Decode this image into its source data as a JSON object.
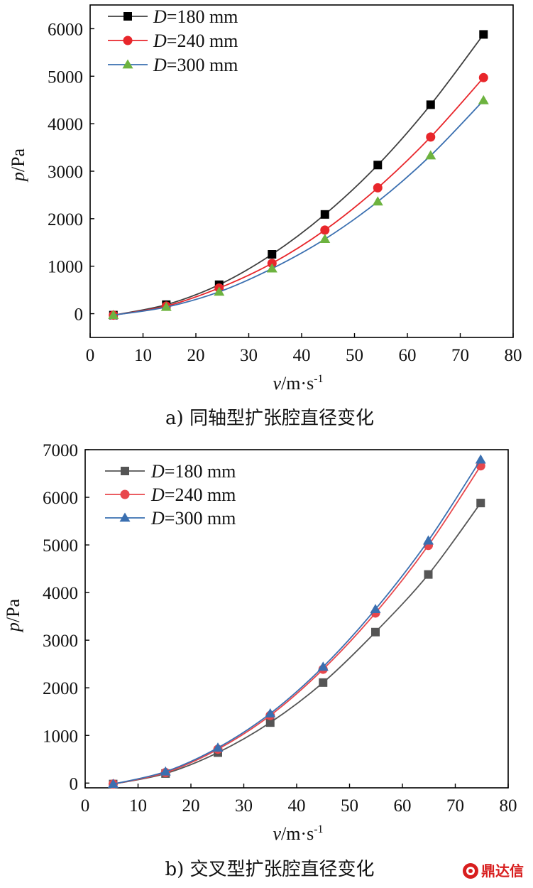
{
  "chart_data": [
    {
      "type": "line",
      "caption": "a) 同轴型扩张腔直径变化",
      "ylabel_var": "p",
      "ylabel_unit": "/Pa",
      "xlabel_var": "v",
      "xlabel_unit": "/m·s",
      "xlabel_sup": "-1",
      "xlim": [
        0,
        80
      ],
      "ylim": [
        -500,
        6500
      ],
      "xticks": [
        0,
        10,
        20,
        30,
        40,
        50,
        60,
        70,
        80
      ],
      "yticks": [
        0,
        1000,
        2000,
        3000,
        4000,
        5000,
        6000
      ],
      "x": [
        4.4,
        14.4,
        24.4,
        34.4,
        44.4,
        54.4,
        64.4,
        74.4
      ],
      "legend_position": "top-left",
      "series": [
        {
          "name_var": "D",
          "name_rest": "=180 mm",
          "marker": "square",
          "color": "#000000",
          "line_color": "#404040",
          "values": [
            -30,
            190,
            610,
            1250,
            2090,
            3130,
            4400,
            5880
          ]
        },
        {
          "name_var": "D",
          "name_rest": "=240 mm",
          "marker": "circle",
          "color": "#e8262b",
          "line_color": "#e8262b",
          "values": [
            -30,
            160,
            540,
            1060,
            1760,
            2650,
            3720,
            4970
          ]
        },
        {
          "name_var": "D",
          "name_rest": "=300 mm",
          "marker": "triangle",
          "color": "#6db33f",
          "line_color": "#3a6fb0",
          "values": [
            -30,
            140,
            460,
            950,
            1570,
            2360,
            3330,
            4490
          ]
        }
      ]
    },
    {
      "type": "line",
      "caption": "b) 交叉型扩张腔直径变化",
      "ylabel_var": "p",
      "ylabel_unit": "/Pa",
      "xlabel_var": "v",
      "xlabel_unit": "/m·s",
      "xlabel_sup": "-1",
      "xlim": [
        0,
        80
      ],
      "ylim": [
        -100,
        7000
      ],
      "xticks": [
        0,
        10,
        20,
        30,
        40,
        50,
        60,
        70,
        80
      ],
      "yticks": [
        0,
        1000,
        2000,
        3000,
        4000,
        5000,
        6000,
        7000
      ],
      "x": [
        5.3,
        15.2,
        25.1,
        35.0,
        45.0,
        54.9,
        64.9,
        74.8
      ],
      "legend_position": "top-left",
      "series": [
        {
          "name_var": "D",
          "name_rest": "=180 mm",
          "marker": "square",
          "color": "#555555",
          "line_color": "#555555",
          "values": [
            -20,
            200,
            640,
            1270,
            2110,
            3170,
            4380,
            5880
          ]
        },
        {
          "name_var": "D",
          "name_rest": "=240 mm",
          "marker": "circle",
          "color": "#e8474c",
          "line_color": "#e8474c",
          "values": [
            -20,
            220,
            710,
            1420,
            2390,
            3570,
            4990,
            6660
          ]
        },
        {
          "name_var": "D",
          "name_rest": "=300 mm",
          "marker": "triangle",
          "color": "#3a6fb0",
          "line_color": "#3a6fb0",
          "values": [
            -20,
            240,
            740,
            1460,
            2440,
            3650,
            5090,
            6790
          ]
        }
      ]
    }
  ],
  "watermark": {
    "icon": "logo-mark-icon",
    "text": "鼎达信"
  }
}
